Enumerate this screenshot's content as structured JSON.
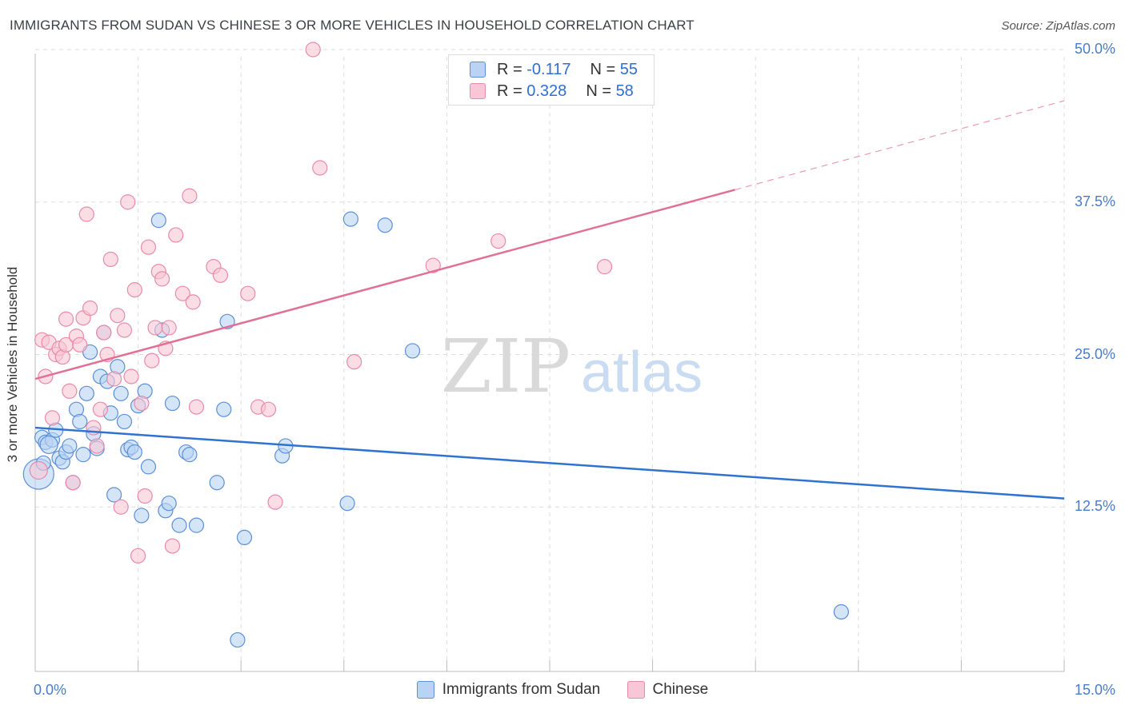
{
  "title": "IMMIGRANTS FROM SUDAN VS CHINESE 3 OR MORE VEHICLES IN HOUSEHOLD CORRELATION CHART",
  "source": "Source: ZipAtlas.com",
  "watermark": {
    "zip": "ZIP",
    "atlas": "atlas"
  },
  "legend_top": {
    "rows": [
      {
        "r_label": "R =",
        "r_value": "-0.117",
        "n_label": "N =",
        "n_value": "55"
      },
      {
        "r_label": "R =",
        "r_value": "0.328",
        "n_label": "N =",
        "n_value": "58"
      }
    ]
  },
  "colors": {
    "sudan_fill": "#b9d3f4",
    "sudan_stroke": "#5b8fd6",
    "sudan_line": "#2f72d0",
    "chinese_fill": "#f8c6d6",
    "chinese_stroke": "#e88aaa",
    "chinese_line": "#e07098",
    "grid": "#dddddd",
    "tick_label": "#4a7cc7"
  },
  "chart_data": {
    "type": "scatter",
    "xlabel": "",
    "ylabel": "3 or more Vehicles in Household",
    "xlim": [
      0,
      15
    ],
    "ylim": [
      0,
      50
    ],
    "y_ticks": [
      12.5,
      25.0,
      37.5,
      50.0
    ],
    "y_tick_labels": [
      "12.5%",
      "25.0%",
      "37.5%",
      "50.0%"
    ],
    "x_tick_labels": [
      "0.0%",
      "15.0%"
    ],
    "grid": true,
    "series": [
      {
        "name": "Immigrants from Sudan",
        "key": "sudan",
        "trend": {
          "x0": 0,
          "y0": 19.0,
          "x1": 15,
          "y1": 13.2,
          "dashed_from": null
        },
        "points": [
          [
            0.05,
            15.2,
            18
          ],
          [
            0.1,
            18.2,
            8
          ],
          [
            0.15,
            17.8,
            8
          ],
          [
            0.25,
            18.0,
            8
          ],
          [
            0.3,
            18.8,
            8
          ],
          [
            0.35,
            16.5,
            8
          ],
          [
            0.4,
            16.2,
            8
          ],
          [
            0.45,
            17.0,
            8
          ],
          [
            0.5,
            17.5,
            8
          ],
          [
            0.55,
            14.5,
            8
          ],
          [
            0.6,
            20.5,
            8
          ],
          [
            0.65,
            19.5,
            8
          ],
          [
            0.7,
            16.8,
            8
          ],
          [
            0.75,
            21.8,
            8
          ],
          [
            0.8,
            25.2,
            8
          ],
          [
            0.85,
            18.5,
            8
          ],
          [
            0.9,
            17.3,
            8
          ],
          [
            0.95,
            23.2,
            8
          ],
          [
            1.0,
            26.8,
            8
          ],
          [
            1.05,
            22.8,
            8
          ],
          [
            1.1,
            20.2,
            8
          ],
          [
            1.15,
            13.5,
            8
          ],
          [
            1.2,
            24.0,
            8
          ],
          [
            1.25,
            21.8,
            8
          ],
          [
            1.3,
            19.5,
            8
          ],
          [
            1.35,
            17.2,
            8
          ],
          [
            1.4,
            17.4,
            8
          ],
          [
            1.45,
            17.0,
            8
          ],
          [
            1.5,
            20.8,
            8
          ],
          [
            1.55,
            11.8,
            8
          ],
          [
            1.6,
            22.0,
            8
          ],
          [
            1.65,
            15.8,
            8
          ],
          [
            1.8,
            36.0,
            8
          ],
          [
            1.85,
            27.0,
            8
          ],
          [
            1.9,
            12.2,
            8
          ],
          [
            1.95,
            12.8,
            8
          ],
          [
            2.0,
            21.0,
            8
          ],
          [
            2.1,
            11.0,
            8
          ],
          [
            2.2,
            17.0,
            8
          ],
          [
            2.25,
            16.8,
            8
          ],
          [
            2.35,
            11.0,
            8
          ],
          [
            2.65,
            14.5,
            8
          ],
          [
            2.75,
            20.5,
            8
          ],
          [
            2.8,
            27.7,
            8
          ],
          [
            2.95,
            1.6,
            8
          ],
          [
            3.05,
            10.0,
            8
          ],
          [
            3.6,
            16.7,
            8
          ],
          [
            3.65,
            17.5,
            8
          ],
          [
            4.55,
            12.8,
            8
          ],
          [
            4.6,
            36.1,
            8
          ],
          [
            5.1,
            35.6,
            8
          ],
          [
            5.5,
            25.3,
            8
          ],
          [
            11.75,
            3.9,
            8
          ],
          [
            0.2,
            17.6,
            10
          ],
          [
            0.12,
            16.1,
            8
          ]
        ]
      },
      {
        "name": "Chinese",
        "key": "chinese",
        "trend": {
          "x0": 0,
          "y0": 23.0,
          "x1": 15,
          "y1": 45.8,
          "dashed_from": 10.2
        },
        "points": [
          [
            0.05,
            15.5,
            10
          ],
          [
            0.1,
            26.2,
            8
          ],
          [
            0.15,
            23.2,
            8
          ],
          [
            0.2,
            26.0,
            8
          ],
          [
            0.25,
            19.8,
            8
          ],
          [
            0.3,
            25.0,
            8
          ],
          [
            0.35,
            25.5,
            8
          ],
          [
            0.4,
            24.8,
            8
          ],
          [
            0.45,
            25.8,
            8
          ],
          [
            0.5,
            22.0,
            8
          ],
          [
            0.55,
            14.5,
            8
          ],
          [
            0.6,
            26.5,
            8
          ],
          [
            0.65,
            25.8,
            8
          ],
          [
            0.7,
            28.0,
            8
          ],
          [
            0.75,
            36.5,
            8
          ],
          [
            0.8,
            28.8,
            8
          ],
          [
            0.85,
            19.0,
            8
          ],
          [
            0.9,
            17.5,
            8
          ],
          [
            0.95,
            20.5,
            8
          ],
          [
            1.0,
            26.8,
            8
          ],
          [
            1.05,
            25.0,
            8
          ],
          [
            1.1,
            32.8,
            8
          ],
          [
            1.15,
            23.0,
            8
          ],
          [
            1.2,
            28.2,
            8
          ],
          [
            1.25,
            12.5,
            8
          ],
          [
            1.3,
            27.0,
            8
          ],
          [
            1.35,
            37.5,
            8
          ],
          [
            1.4,
            23.2,
            8
          ],
          [
            1.45,
            30.3,
            8
          ],
          [
            1.5,
            8.5,
            8
          ],
          [
            1.55,
            21.0,
            8
          ],
          [
            1.6,
            13.4,
            8
          ],
          [
            1.65,
            33.8,
            8
          ],
          [
            1.7,
            24.5,
            8
          ],
          [
            1.75,
            27.2,
            8
          ],
          [
            1.8,
            31.8,
            8
          ],
          [
            1.85,
            31.2,
            8
          ],
          [
            1.9,
            25.5,
            8
          ],
          [
            1.95,
            27.2,
            8
          ],
          [
            2.0,
            9.3,
            8
          ],
          [
            2.05,
            34.8,
            8
          ],
          [
            2.15,
            30.0,
            8
          ],
          [
            2.25,
            38.0,
            8
          ],
          [
            2.3,
            29.3,
            8
          ],
          [
            2.35,
            20.7,
            8
          ],
          [
            2.6,
            32.2,
            8
          ],
          [
            2.7,
            31.5,
            8
          ],
          [
            3.1,
            30.0,
            8
          ],
          [
            3.25,
            20.7,
            8
          ],
          [
            3.4,
            20.5,
            8
          ],
          [
            3.5,
            12.9,
            8
          ],
          [
            4.05,
            50.0,
            8
          ],
          [
            4.15,
            40.3,
            8
          ],
          [
            4.65,
            24.4,
            8
          ],
          [
            5.8,
            32.3,
            8
          ],
          [
            6.75,
            34.3,
            8
          ],
          [
            8.3,
            32.2,
            8
          ],
          [
            0.45,
            27.9,
            8
          ]
        ]
      }
    ]
  }
}
